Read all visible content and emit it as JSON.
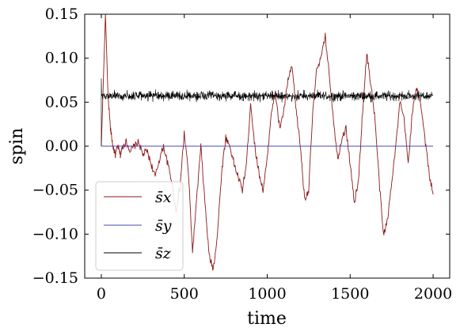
{
  "chart_data": {
    "type": "line",
    "title": "",
    "xlabel": "time",
    "ylabel": "spin",
    "xlim": [
      -100,
      2100
    ],
    "ylim": [
      -0.15,
      0.15
    ],
    "xticks": [
      0,
      500,
      1000,
      1500,
      2000
    ],
    "xtick_labels": [
      "0",
      "500",
      "1000",
      "1500",
      "2000"
    ],
    "yticks": [
      -0.15,
      -0.1,
      -0.05,
      0.0,
      0.05,
      0.1,
      0.15
    ],
    "ytick_labels": [
      "−0.15",
      "−0.10",
      "−0.05",
      "0.00",
      "0.05",
      "0.10",
      "0.15"
    ],
    "grid": false,
    "legend_position": "lower-left",
    "series": [
      {
        "name": "s̄x",
        "color": "#8b1a1a",
        "x": [
          0,
          25,
          40,
          55,
          70,
          85,
          100,
          115,
          130,
          150,
          175,
          200,
          225,
          250,
          275,
          300,
          325,
          350,
          375,
          400,
          425,
          450,
          475,
          500,
          525,
          550,
          575,
          600,
          625,
          650,
          675,
          700,
          725,
          750,
          775,
          800,
          825,
          850,
          875,
          900,
          925,
          950,
          975,
          1000,
          1025,
          1050,
          1075,
          1100,
          1125,
          1150,
          1175,
          1200,
          1225,
          1250,
          1275,
          1300,
          1325,
          1350,
          1375,
          1400,
          1425,
          1450,
          1475,
          1500,
          1525,
          1550,
          1575,
          1600,
          1625,
          1650,
          1675,
          1700,
          1725,
          1750,
          1775,
          1800,
          1825,
          1850,
          1875,
          1900,
          1925,
          1950,
          1975,
          2000
        ],
        "values": [
          0.0,
          0.15,
          0.06,
          0.02,
          0.0,
          -0.01,
          0.0,
          -0.01,
          0.0,
          0.005,
          -0.005,
          0.0,
          0.005,
          -0.01,
          -0.005,
          -0.02,
          -0.035,
          -0.015,
          0.0,
          -0.02,
          -0.04,
          -0.075,
          -0.045,
          0.015,
          -0.03,
          -0.12,
          -0.06,
          0.0,
          -0.065,
          -0.125,
          -0.14,
          -0.1,
          -0.03,
          0.01,
          0.0,
          -0.02,
          -0.035,
          -0.05,
          -0.02,
          0.05,
          0.0,
          -0.03,
          -0.05,
          -0.015,
          0.04,
          0.06,
          0.02,
          0.04,
          0.075,
          0.09,
          0.04,
          0.0,
          -0.06,
          -0.05,
          0.04,
          0.09,
          0.1,
          0.125,
          0.08,
          0.03,
          -0.015,
          0.01,
          0.02,
          -0.02,
          -0.065,
          -0.04,
          0.04,
          0.105,
          0.07,
          0.03,
          -0.04,
          -0.1,
          -0.085,
          -0.04,
          0.0,
          0.05,
          0.03,
          -0.02,
          0.04,
          0.065,
          0.05,
          0.01,
          -0.03,
          -0.055
        ]
      },
      {
        "name": "s̄y",
        "color": "#4a4ab8",
        "x": [
          0,
          2000
        ],
        "values": [
          0.0,
          0.0
        ]
      },
      {
        "name": "s̄z",
        "color": "#000000",
        "x_start": 0,
        "x_end": 2000,
        "mean": 0.057,
        "noise_amplitude": 0.008,
        "initial_values": [
          0.0,
          0.077,
          0.057
        ]
      }
    ]
  }
}
